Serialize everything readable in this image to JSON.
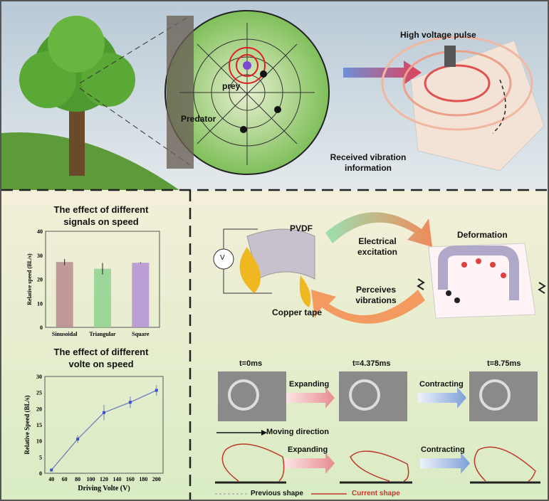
{
  "top": {
    "pulse_label": "High voltage pulse",
    "prey_label": "prey",
    "predator_label": "Predator",
    "received_label_1": "Received vibration",
    "received_label_2": "information"
  },
  "mechanism": {
    "pvdf": "PVDF",
    "voltmeter": "V",
    "copper": "Copper tape",
    "electrical_1": "Electrical",
    "electrical_2": "excitation",
    "perceives_1": "Perceives",
    "perceives_2": "vibrations",
    "deformation": "Deformation"
  },
  "sequence": {
    "times": [
      "t=0ms",
      "t=4.375ms",
      "t=8.75ms"
    ],
    "expanding": "Expanding",
    "contracting": "Contracting",
    "moving": "Moving direction",
    "previous": "Previous shape",
    "current": "Current shape"
  },
  "colors": {
    "current_shape": "#c0392b",
    "line_series": "#3a4fd0"
  },
  "chart_data": [
    {
      "type": "bar",
      "title_1": "The effect of different",
      "title_2": "signals on speed",
      "categories": [
        "Sinusoidal",
        "Triangular",
        "Square"
      ],
      "values": [
        27.2,
        24.4,
        26.9
      ],
      "errors": [
        1.3,
        2.4,
        0.2
      ],
      "colors": [
        "#b98a8e",
        "#8fd18f",
        "#b38fd3"
      ],
      "ylabel": "Relative speed (BL/s)",
      "ylim": [
        0,
        40
      ],
      "yticks": [
        "0",
        "10",
        "20",
        "30",
        "40"
      ]
    },
    {
      "type": "line",
      "title_1": "The effect of different",
      "title_2": "volte on speed",
      "x": [
        40,
        80,
        120,
        160,
        200
      ],
      "y": [
        1,
        10.6,
        18.8,
        22,
        25.7
      ],
      "errors": [
        0.2,
        1.2,
        2.4,
        1.8,
        1.6
      ],
      "xlabel": "Driving Volte (V)",
      "ylabel": "Relative Speed (BL/s)",
      "xlim": [
        30,
        210
      ],
      "ylim": [
        0,
        30
      ],
      "xticks": [
        "40",
        "60",
        "80",
        "100",
        "120",
        "140",
        "160",
        "180",
        "200"
      ],
      "yticks": [
        "0",
        "5",
        "10",
        "15",
        "20",
        "25",
        "30"
      ]
    }
  ]
}
